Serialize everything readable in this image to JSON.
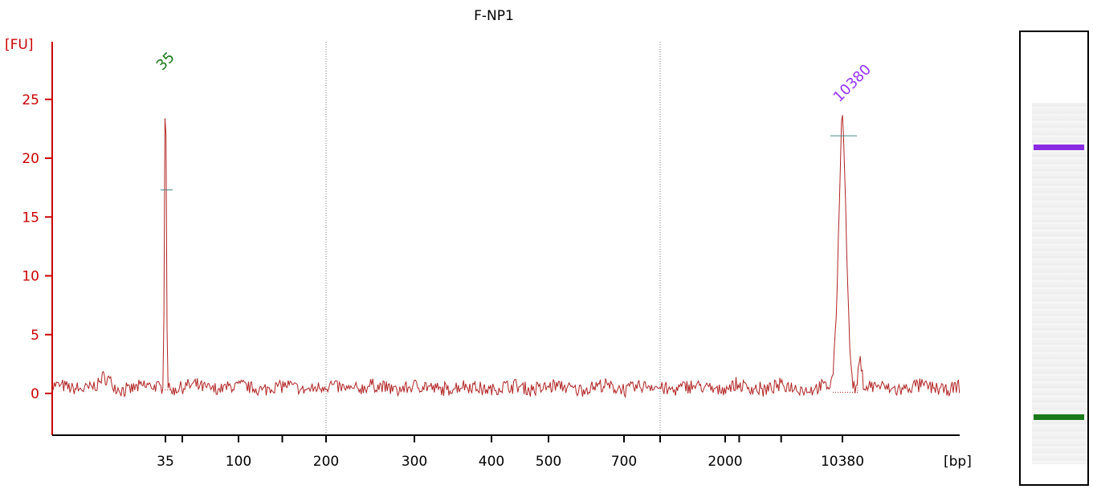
{
  "chart_data": {
    "type": "line",
    "title": "F-NP1",
    "ylabel": "[FU]",
    "xlabel": "[bp]",
    "ylim": [
      -3,
      30
    ],
    "yticks": [
      0,
      5,
      10,
      15,
      20,
      25
    ],
    "xtick_labels": [
      "35",
      "100",
      "200",
      "300",
      "400",
      "500",
      "700",
      "2000",
      "10380"
    ],
    "x_scale": "ladder-calibrated (bp)",
    "reference_lines_bp": [
      200,
      1000
    ],
    "baseline_fu": 0.5,
    "peaks": [
      {
        "label": "35",
        "bp": 35,
        "height_fu": 27,
        "label_color": "#1a7a1a"
      },
      {
        "label": "10380",
        "bp": 10380,
        "height_fu": 24.3,
        "label_color": "#9933ff"
      }
    ],
    "series": [
      {
        "color": "#b22222"
      }
    ]
  },
  "gel": {
    "bands": [
      {
        "label": "10380",
        "color": "#8a2be2"
      },
      {
        "label": "35",
        "color": "#1a7a1a"
      }
    ]
  }
}
